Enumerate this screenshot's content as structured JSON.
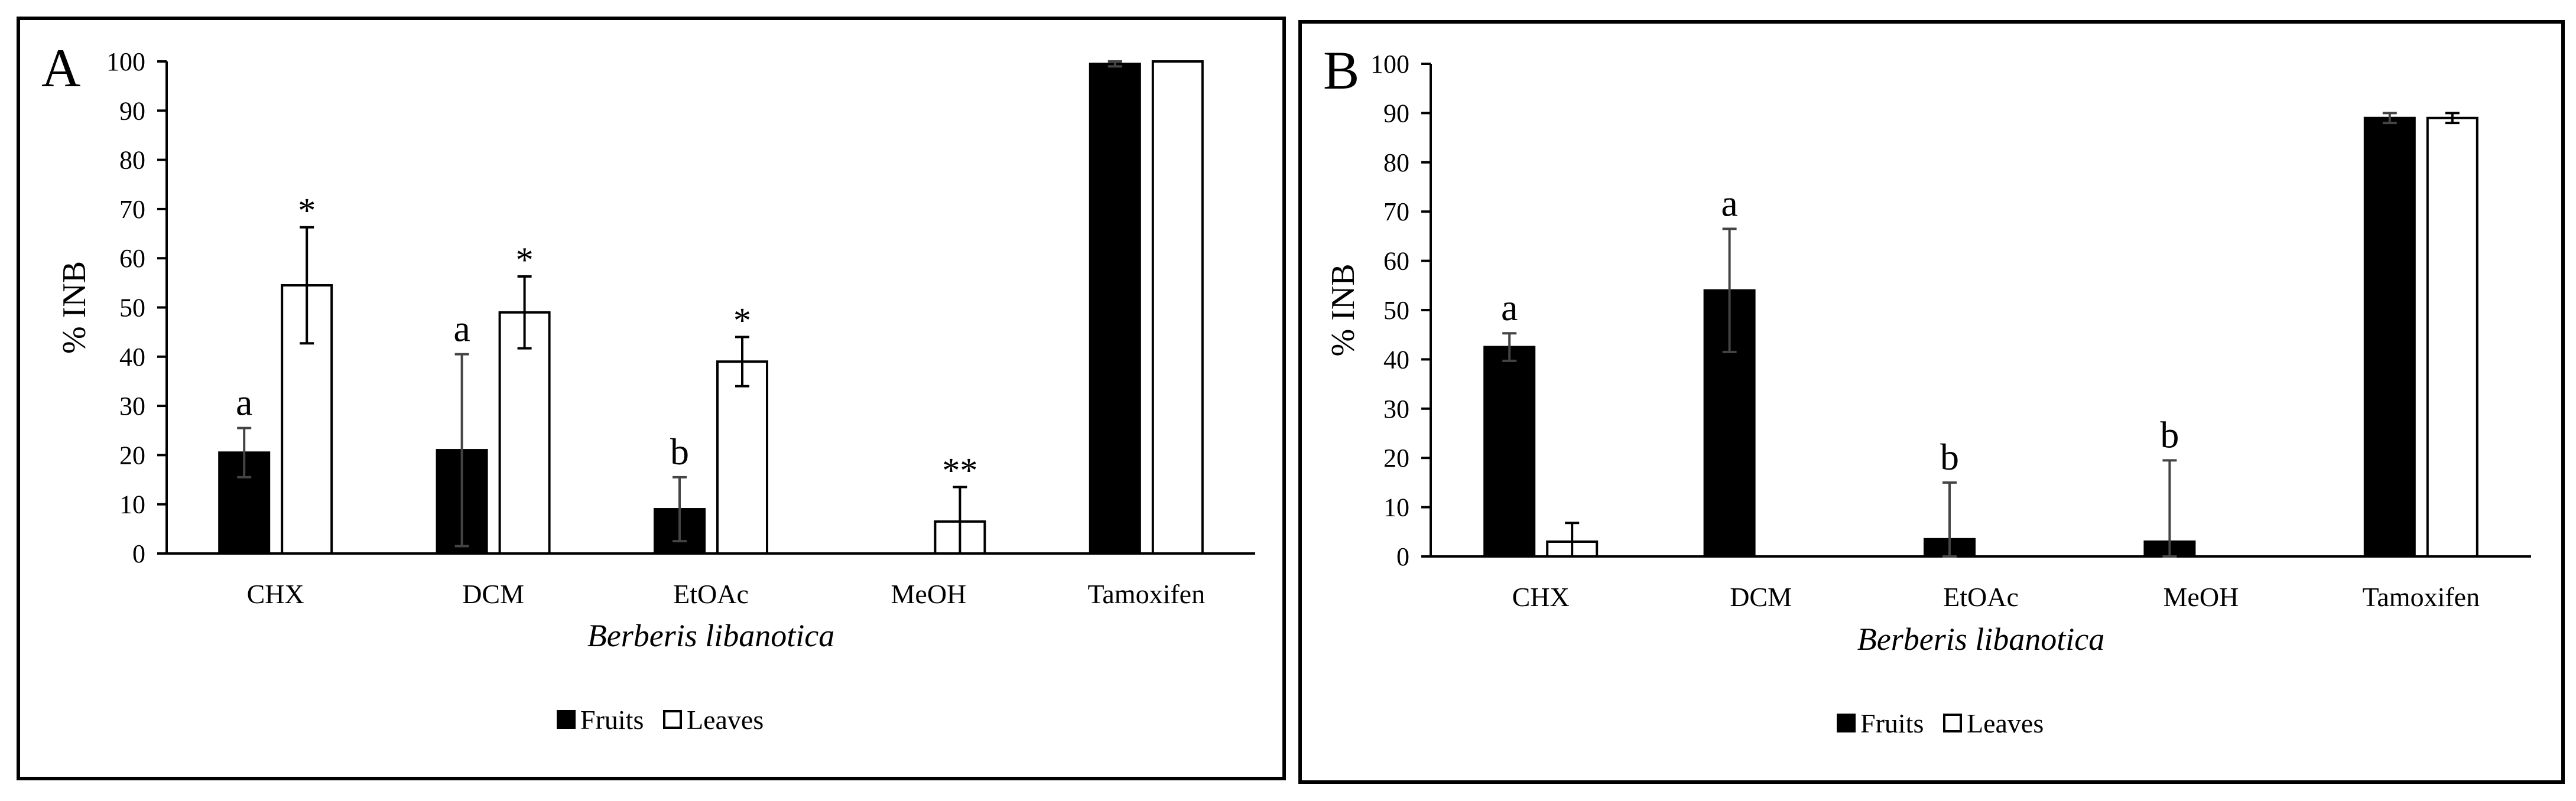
{
  "chart_data": [
    {
      "type": "bar",
      "panel_label": "A",
      "title": "",
      "xlabel": "Berberis libanotica",
      "ylabel": "% INB",
      "ylim": [
        0,
        100
      ],
      "yticks": [
        "0",
        "10",
        "20",
        "30",
        "40",
        "50",
        "60",
        "70",
        "80",
        "90",
        "100"
      ],
      "grid": false,
      "legend_position": "bottom",
      "categories": [
        "CHX",
        "DCM",
        "EtOAc",
        "MeOH",
        "Tamoxifen"
      ],
      "series": [
        {
          "name": "Fruits",
          "color": "#000000",
          "values": [
            20.5,
            21.0,
            9.0,
            0,
            99.5
          ],
          "errors": [
            5.0,
            19.5,
            6.5,
            0,
            0.5
          ],
          "annotations": [
            "a",
            "a",
            "b",
            "",
            ""
          ]
        },
        {
          "name": "Leaves",
          "color": "#ffffff",
          "values": [
            54.5,
            49.0,
            39.0,
            6.5,
            100
          ],
          "errors": [
            11.8,
            7.3,
            5.0,
            7.0,
            0
          ],
          "annotations": [
            "*",
            "*",
            "*",
            "**",
            ""
          ]
        }
      ]
    },
    {
      "type": "bar",
      "panel_label": "B",
      "title": "",
      "xlabel": "Berberis libanotica",
      "ylabel": "% INB",
      "ylim": [
        0,
        100
      ],
      "yticks": [
        "0",
        "10",
        "20",
        "30",
        "40",
        "50",
        "60",
        "70",
        "80",
        "90",
        "100"
      ],
      "grid": false,
      "legend_position": "bottom",
      "categories": [
        "CHX",
        "DCM",
        "EtOAc",
        "MeOH",
        "Tamoxifen"
      ],
      "series": [
        {
          "name": "Fruits",
          "color": "#000000",
          "values": [
            42.5,
            54.0,
            3.5,
            3.0,
            89.0
          ],
          "errors": [
            2.8,
            12.5,
            11.5,
            16.5,
            1.0
          ],
          "annotations": [
            "a",
            "a",
            "b",
            "b",
            ""
          ]
        },
        {
          "name": "Leaves",
          "color": "#ffffff",
          "values": [
            3.0,
            0,
            0,
            0,
            89.0
          ],
          "errors": [
            3.8,
            0,
            0,
            0,
            1.0
          ],
          "annotations": [
            "",
            "",
            "",
            "",
            ""
          ]
        }
      ]
    }
  ]
}
